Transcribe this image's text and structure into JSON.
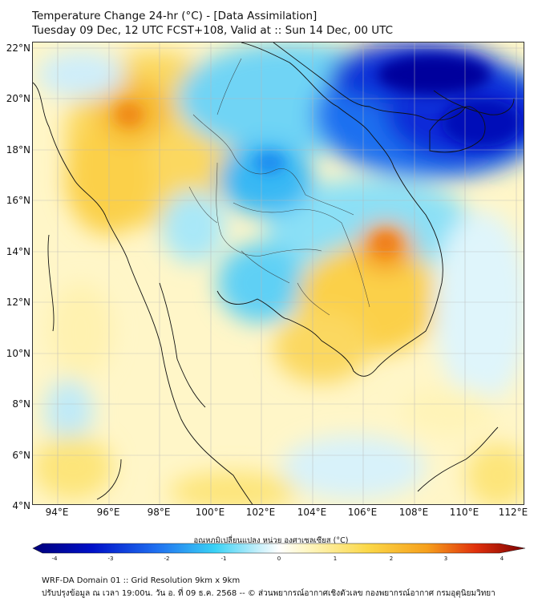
{
  "header": {
    "title_line1": "Temperature Change 24-hr (°C) - [Data Assimilation]",
    "title_line2": "Tuesday 09 Dec, 12 UTC FCST+108, Valid at :: Sun 14 Dec, 00 UTC"
  },
  "map": {
    "lat_labels": [
      "22°N",
      "20°N",
      "18°N",
      "16°N",
      "14°N",
      "12°N",
      "10°N",
      "8°N",
      "6°N",
      "4°N"
    ],
    "lon_labels": [
      "94°E",
      "96°E",
      "98°E",
      "100°E",
      "102°E",
      "104°E",
      "106°E",
      "108°E",
      "110°E",
      "112°E"
    ],
    "extent": {
      "lon_min": 93,
      "lon_max": 112.4,
      "lat_min": 4,
      "lat_max": 22.2
    }
  },
  "colorbar": {
    "title": "อุณหภูมิเปลี่ยนแปลง หน่วย องศาเซลเซียส (°C)",
    "range": [
      -4,
      4
    ],
    "ticks": [
      "-4",
      "-3",
      "-2",
      "-1",
      "0",
      "1",
      "2",
      "3",
      "4"
    ],
    "colors": {
      "neg_extreme": "#00007a",
      "neg_strong": "#0a1fe0",
      "neg_mid": "#1f8cf0",
      "neg_light": "#3ad2f5",
      "neutral": "#f4fbff",
      "pos_light": "#fff1a0",
      "pos_mid": "#f8c420",
      "pos_strong": "#f07a10",
      "pos_extreme": "#7a0000"
    }
  },
  "footer": {
    "line1": "WRF-DA Domain 01 :: Grid Resolution 9km x 9km",
    "line2": "ปรับปรุงข้อมูล ณ เวลา 19:00น. วัน อ. ที่ 09 ธ.ค. 2568 -- © ส่วนพยากรณ์อากาศเชิงตัวเลข กองพยากรณ์อากาศ กรมอุตุนิยมวิทยา"
  }
}
